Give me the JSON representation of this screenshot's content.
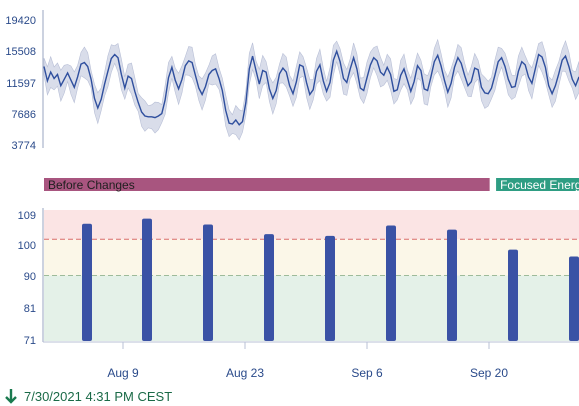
{
  "footer": {
    "timestamp": "7/30/2021 4:31 PM  CEST",
    "icon": "down-arrow-icon",
    "color": "#1a7a4f"
  },
  "chart_data": [
    {
      "type": "area",
      "description_only": false,
      "y_ticks": [
        "19420",
        "15508",
        "11597",
        "7686",
        "3774"
      ],
      "ylim": [
        3774,
        19420
      ],
      "x": [
        0,
        1,
        2,
        3,
        4,
        5,
        6,
        7,
        8,
        9,
        10,
        11,
        12,
        13,
        14,
        15,
        16,
        17,
        18,
        19,
        20,
        21,
        22,
        23,
        24,
        25,
        26,
        27,
        28,
        29,
        30,
        31,
        32,
        33,
        34,
        35,
        36,
        37,
        38,
        39,
        40,
        41,
        42,
        43,
        44,
        45,
        46,
        47,
        48,
        49,
        50,
        51,
        52,
        53,
        54,
        55,
        56,
        57,
        58,
        59,
        60,
        61,
        62,
        63,
        64,
        65,
        66,
        67,
        68,
        69,
        70,
        71,
        72,
        73,
        74,
        75,
        76,
        77,
        78,
        79,
        80,
        81,
        82,
        83,
        84,
        85,
        86,
        87,
        88,
        89,
        90,
        91,
        92,
        93,
        94,
        95,
        96,
        97,
        98,
        99,
        100,
        101,
        102,
        103,
        104,
        105,
        106,
        107,
        108,
        109,
        110,
        111,
        112,
        113,
        114,
        115,
        116,
        117,
        118,
        119,
        120,
        121,
        122,
        123,
        124,
        125,
        126,
        127,
        128,
        129,
        130,
        131,
        132,
        133,
        134,
        135,
        136,
        137,
        138,
        139,
        140,
        141,
        142,
        143,
        144,
        145,
        146,
        147,
        148,
        149,
        150,
        151,
        152,
        153,
        154,
        155,
        156,
        157,
        158,
        159
      ],
      "series": [
        {
          "values": [
            13600,
            11800,
            12900,
            12100,
            12600,
            11200,
            12000,
            12800,
            11900,
            11000,
            12300,
            13900,
            14100,
            13600,
            12000,
            9600,
            8400,
            9500,
            11400,
            13000,
            14600,
            15100,
            14700,
            12600,
            10900,
            12400,
            12100,
            10500,
            9100,
            7900,
            7400,
            7300,
            7300,
            7200,
            7400,
            7700,
            9400,
            12200,
            13500,
            11900,
            10800,
            12000,
            13700,
            14300,
            14100,
            12500,
            10900,
            10100,
            11100,
            12600,
            13100,
            13300,
            12100,
            10600,
            8100,
            6500,
            6400,
            6900,
            6300,
            6700,
            9100,
            13300,
            14900,
            13100,
            11400,
            13100,
            12900,
            10800,
            9600,
            10600,
            12700,
            13400,
            12900,
            11200,
            10200,
            11700,
            13800,
            13600,
            11600,
            10100,
            10700,
            13000,
            13800,
            11800,
            10500,
            11600,
            14400,
            15500,
            14200,
            12100,
            11600,
            13300,
            14700,
            13300,
            10900,
            10600,
            12200,
            13800,
            14700,
            14300,
            12900,
            12500,
            13500,
            12600,
            10500,
            10700,
            12500,
            13300,
            11900,
            10500,
            11700,
            13700,
            13100,
            10800,
            10600,
            12300,
            14200,
            15000,
            13700,
            11900,
            10400,
            11500,
            13500,
            14700,
            14000,
            12500,
            11200,
            11700,
            13400,
            13200,
            11000,
            10300,
            10200,
            10900,
            12500,
            14200,
            14700,
            13600,
            12000,
            11000,
            11100,
            13000,
            14200,
            13800,
            12300,
            11500,
            13300,
            15100,
            14800,
            13500,
            11200,
            10200,
            11200,
            12700,
            14400,
            14900,
            13600,
            12000,
            11200,
            12300
          ]
        }
      ],
      "band_width": 1500,
      "line_color": "#2f4f9e",
      "band_color": "#d9ddea"
    },
    {
      "type": "table",
      "phases": [
        {
          "label": "Before Changes",
          "color": "#a8557f",
          "start": 0,
          "end": 0.833
        },
        {
          "label": "Focused Energy",
          "color": "#2e9d83",
          "start": 0.845,
          "end": 1.0
        }
      ]
    },
    {
      "type": "bar",
      "y_ticks": [
        "109",
        "100",
        "90",
        "81",
        "71"
      ],
      "ylim": [
        71,
        109
      ],
      "x_ticks": [
        "Aug 9",
        "Aug 23",
        "Sep 6",
        "Sep 20"
      ],
      "values": [
        105,
        106.5,
        104.8,
        102,
        101.5,
        104.5,
        103.3,
        97.5,
        95.5
      ],
      "bar_color": "#3a52a5",
      "zones": [
        {
          "from": 100.5,
          "to": 109,
          "color": "#fbe4e4"
        },
        {
          "from": 90,
          "to": 100.5,
          "color": "#fbf7e8"
        },
        {
          "from": 71,
          "to": 90,
          "color": "#e4f1e8"
        }
      ],
      "thresholds": [
        {
          "value": 100.5,
          "color": "#d96b6b"
        },
        {
          "value": 90,
          "color": "#9dbb9a"
        }
      ]
    }
  ]
}
